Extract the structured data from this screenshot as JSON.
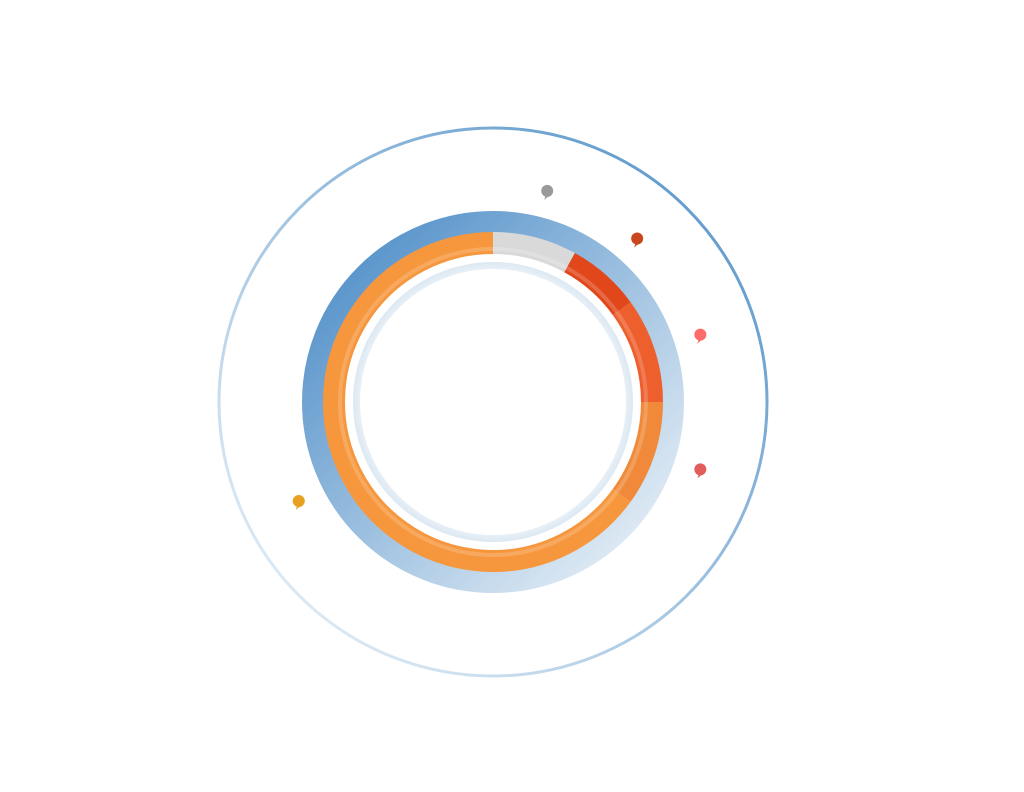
{
  "chart_data": {
    "type": "pie",
    "style": "donut",
    "title": "",
    "series": [
      {
        "value": 8,
        "color": "#d9d9d9"
      },
      {
        "value": 7,
        "color": "#e2471c"
      },
      {
        "value": 10,
        "color": "#ee5f2e"
      },
      {
        "value": 10,
        "color": "#f08a3a"
      },
      {
        "value": 65,
        "color": "#f7973d"
      }
    ],
    "marker_colors": [
      "#9a9a9a",
      "#c9461e",
      "#ff6b6b",
      "#e35c5c",
      "#e8a020"
    ],
    "ring_colors": {
      "outer_ring_start": "#4e8fc7",
      "outer_ring_end": "#f2f7fb",
      "track_start": "#4a8bc6",
      "track_end": "#eef4f9"
    }
  }
}
